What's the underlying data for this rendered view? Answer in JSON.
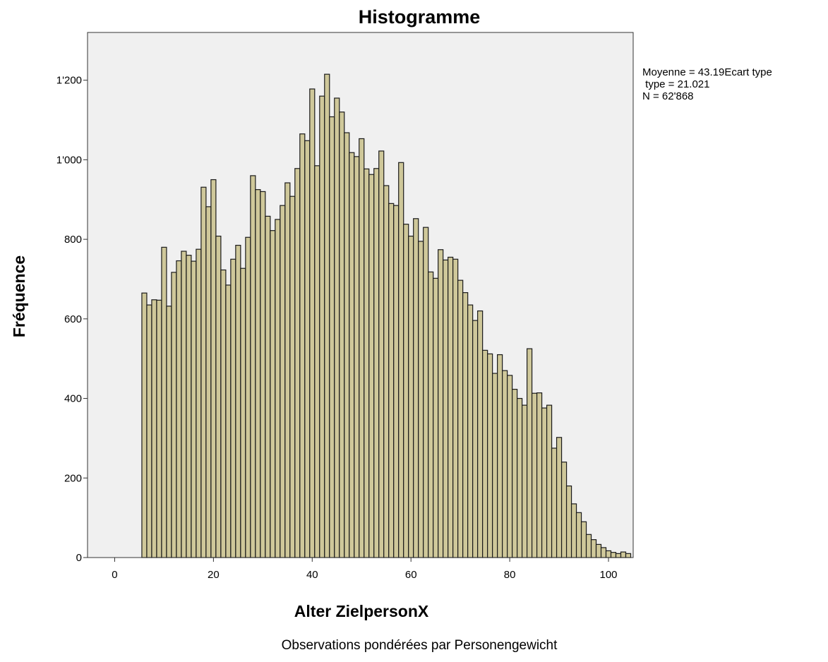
{
  "chart_data": {
    "type": "bar",
    "title": "Histogramme",
    "xlabel": "Alter ZielpersonX",
    "ylabel": "Fréquence",
    "footnote": "Observations pondérées par Personengewicht",
    "stats": [
      "Moyenne = 43.19Ecart type",
      " type = 21.021",
      "N = 62'868"
    ],
    "xlim": [
      -5.5,
      105
    ],
    "ylim": [
      0,
      1320
    ],
    "x_ticks": [
      0,
      20,
      40,
      60,
      80,
      100
    ],
    "x_tick_labels": [
      "0",
      "20",
      "40",
      "60",
      "80",
      "100"
    ],
    "y_ticks": [
      0,
      200,
      400,
      600,
      800,
      1000,
      1200
    ],
    "y_tick_labels": [
      "0",
      "200",
      "400",
      "600",
      "800",
      "1'000",
      "1'200"
    ],
    "bin_width": 1,
    "first_bin_start": 5.5,
    "values": [
      665,
      635,
      648,
      647,
      780,
      632,
      717,
      746,
      770,
      760,
      745,
      775,
      931,
      882,
      950,
      808,
      723,
      685,
      750,
      785,
      727,
      805,
      960,
      925,
      920,
      858,
      822,
      850,
      885,
      942,
      908,
      978,
      1065,
      1048,
      1178,
      985,
      1160,
      1215,
      1108,
      1155,
      1120,
      1068,
      1018,
      1008,
      1053,
      977,
      963,
      978,
      1022,
      935,
      890,
      885,
      993,
      838,
      808,
      852,
      795,
      830,
      718,
      702,
      774,
      748,
      755,
      750,
      697,
      666,
      635,
      596,
      620,
      521,
      512,
      463,
      510,
      470,
      458,
      423,
      400,
      383,
      525,
      413,
      414,
      376,
      383,
      275,
      302,
      240,
      180,
      135,
      113,
      90,
      58,
      45,
      33,
      25,
      17,
      13,
      10,
      14,
      10
    ]
  },
  "colors": {
    "bar_fill": "#cfc89a",
    "bar_stroke": "#1a1a1a",
    "plot_background": "#f0f0f0",
    "frame": "#333333"
  }
}
